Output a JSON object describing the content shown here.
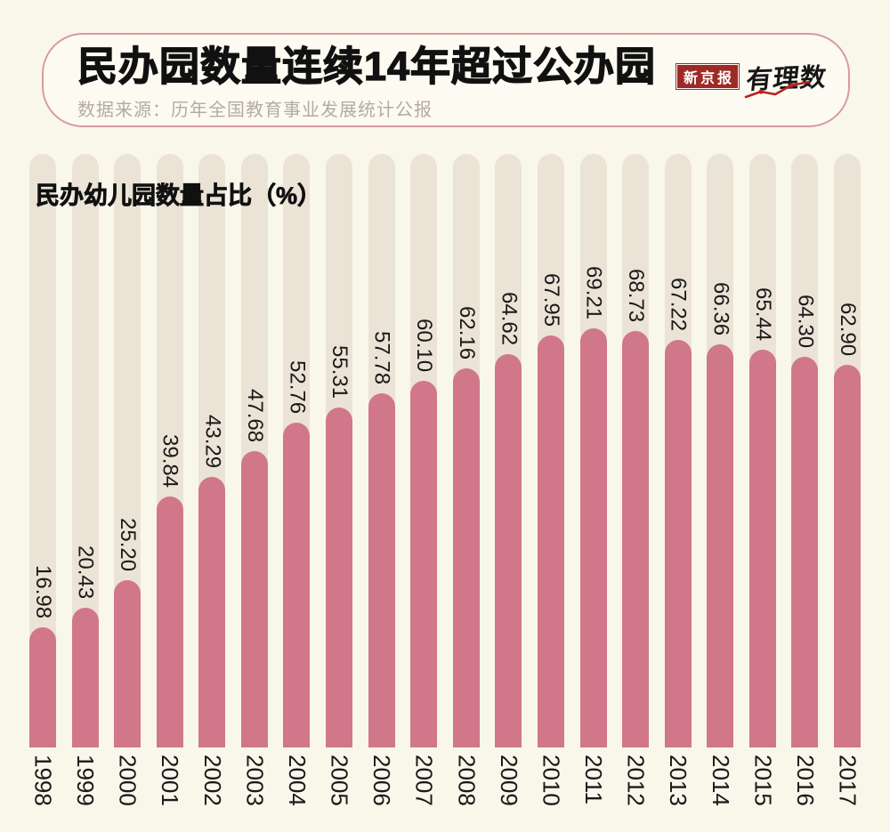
{
  "header": {
    "title": "民办园数量连续14年超过公办园",
    "source": "数据来源：历年全国教育事业发展统计公报",
    "logo": {
      "brand": "新京报",
      "series": "有理数",
      "line_chart_icon": "logo-line-chart-icon"
    }
  },
  "chart_data": {
    "type": "bar",
    "title": "民办园数量连续14年超过公办园",
    "ylabel": "民办幼儿园数量占比（%）",
    "categories": [
      "1998",
      "1999",
      "2000",
      "2001",
      "2002",
      "2003",
      "2004",
      "2005",
      "2006",
      "2007",
      "2008",
      "2009",
      "2010",
      "2011",
      "2012",
      "2013",
      "2014",
      "2015",
      "2016",
      "2017"
    ],
    "values": [
      16.98,
      20.43,
      25.2,
      39.84,
      43.29,
      47.68,
      52.76,
      55.31,
      57.78,
      60.1,
      62.16,
      64.62,
      67.95,
      69.21,
      68.73,
      67.22,
      66.36,
      65.44,
      64.3,
      62.9
    ],
    "value_labels": [
      "16.98",
      "20.43",
      "25.20",
      "39.84",
      "43.29",
      "47.68",
      "52.76",
      "55.31",
      "57.78",
      "60.10",
      "62.16",
      "64.62",
      "67.95",
      "69.21",
      "68.73",
      "67.22",
      "66.36",
      "65.44",
      "64.30",
      "62.90"
    ],
    "ylim": [
      0,
      75
    ],
    "grid": false,
    "legend": "none",
    "label_rotation_deg": 90,
    "bar_shape": "rounded-top-with-background-track"
  },
  "colors": {
    "background": "#f9f7ea",
    "panel_bg": "#fdfbf1",
    "panel_border": "#d89aa0",
    "bar": "#d1778a",
    "track": "#ebe3d6",
    "title": "#111111",
    "source_text": "#b3ac9f",
    "label_text": "#1a1a1a",
    "logo_red": "#9e2a25",
    "logo_line": "#b5251f"
  }
}
